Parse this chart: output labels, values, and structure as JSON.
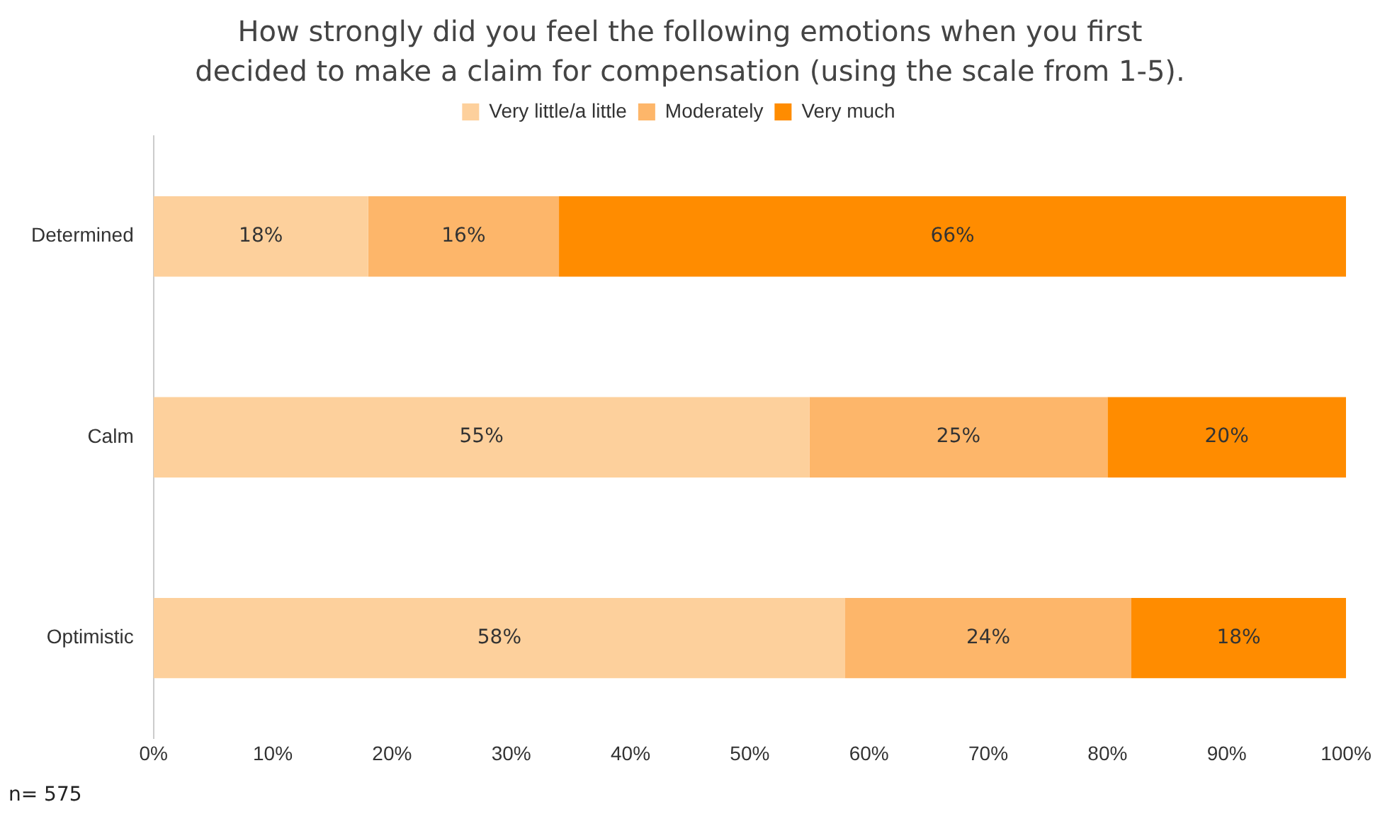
{
  "chart_data": {
    "type": "bar",
    "orientation": "horizontal",
    "stacked": true,
    "title": "How strongly did you feel the following emotions when you first decided to make a claim for compensation (using the scale from 1-5).",
    "categories": [
      "Determined",
      "Calm",
      "Optimistic"
    ],
    "series": [
      {
        "name": "Very little/a little",
        "color": "#fdd09c",
        "values": [
          18,
          55,
          58
        ],
        "value_labels": [
          "18%",
          "55%",
          "58%"
        ]
      },
      {
        "name": "Moderately",
        "color": "#fdb66a",
        "values": [
          16,
          25,
          24
        ],
        "value_labels": [
          "16%",
          "25%",
          "24%"
        ]
      },
      {
        "name": "Very much",
        "color": "#ff8c00",
        "values": [
          66,
          20,
          18
        ],
        "value_labels": [
          "66%",
          "20%",
          "18%"
        ]
      }
    ],
    "xlim": [
      0,
      100
    ],
    "xticks": [
      {
        "value": 0,
        "label": "0%"
      },
      {
        "value": 10,
        "label": "10%"
      },
      {
        "value": 20,
        "label": "20%"
      },
      {
        "value": 30,
        "label": "30%"
      },
      {
        "value": 40,
        "label": "40%"
      },
      {
        "value": 50,
        "label": "50%"
      },
      {
        "value": 60,
        "label": "60%"
      },
      {
        "value": 70,
        "label": "70%"
      },
      {
        "value": 80,
        "label": "80%"
      },
      {
        "value": 90,
        "label": "90%"
      },
      {
        "value": 100,
        "label": "100%"
      }
    ],
    "grid": false,
    "legend": "top",
    "annotations": [
      "n= 575"
    ]
  }
}
